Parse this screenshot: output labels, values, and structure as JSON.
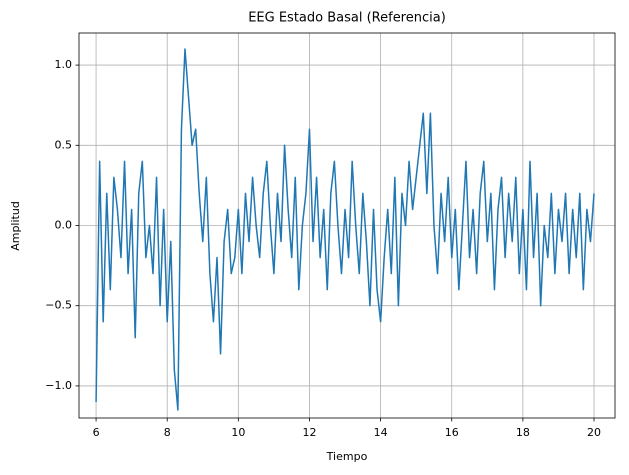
{
  "chart_data": {
    "type": "line",
    "title": "EEG Estado Basal (Referencia)",
    "x_label": "Tiempo",
    "y_label": "Amplitud",
    "xlim": [
      5.52,
      20.59
    ],
    "ylim": [
      -1.2,
      1.2
    ],
    "xticks": [
      6,
      8,
      10,
      12,
      14,
      16,
      18,
      20
    ],
    "yticks": [
      {
        "value": -1,
        "label": "−1.0"
      },
      {
        "value": -0.5,
        "label": "−0.5"
      },
      {
        "value": 0,
        "label": "0.0"
      },
      0.5,
      {
        "value": 1,
        "label": "1.0"
      }
    ],
    "grid": true,
    "x": [
      6,
      6.1,
      6.2,
      6.3,
      6.4,
      6.5,
      6.6,
      6.7,
      6.8,
      6.9,
      7,
      7.1,
      7.2,
      7.3,
      7.4,
      7.5,
      7.6,
      7.7,
      7.8,
      7.9,
      8,
      8.1,
      8.2,
      8.3,
      8.4,
      8.5,
      8.6,
      8.7,
      8.8,
      8.9,
      9,
      9.1,
      9.2,
      9.3,
      9.4,
      9.5,
      9.6,
      9.7,
      9.8,
      9.9,
      10,
      10.1,
      10.2,
      10.3,
      10.4,
      10.5,
      10.6,
      10.7,
      10.8,
      10.9,
      11,
      11.1,
      11.2,
      11.3,
      11.4,
      11.5,
      11.6,
      11.7,
      11.8,
      11.9,
      12,
      12.1,
      12.2,
      12.3,
      12.4,
      12.5,
      12.6,
      12.7,
      12.8,
      12.9,
      13,
      13.1,
      13.2,
      13.3,
      13.4,
      13.5,
      13.6,
      13.7,
      13.8,
      13.9,
      14,
      14.1,
      14.2,
      14.3,
      14.4,
      14.5,
      14.6,
      14.7,
      14.8,
      14.9,
      15,
      15.1,
      15.2,
      15.3,
      15.4,
      15.5,
      15.6,
      15.7,
      15.8,
      15.9,
      16,
      16.1,
      16.2,
      16.3,
      16.4,
      16.5,
      16.6,
      16.7,
      16.8,
      16.9,
      17,
      17.1,
      17.2,
      17.3,
      17.4,
      17.5,
      17.6,
      17.7,
      17.8,
      17.9,
      18,
      18.1,
      18.2,
      18.3,
      18.4,
      18.5,
      18.6,
      18.7,
      18.8,
      18.9,
      19,
      19.1,
      19.2,
      19.3,
      19.4,
      19.5,
      19.6,
      19.7,
      19.8,
      19.9,
      20
    ],
    "series": [
      {
        "color": "#1f77b4",
        "values": [
          -1.1,
          0.4,
          -0.6,
          0.2,
          -0.4,
          0.3,
          0.1,
          -0.2,
          0.4,
          -0.3,
          0.1,
          -0.7,
          0.2,
          0.4,
          -0.2,
          0.0,
          -0.3,
          0.3,
          -0.5,
          0.1,
          -0.6,
          -0.1,
          -0.9,
          -1.15,
          0.6,
          1.1,
          0.8,
          0.5,
          0.6,
          0.2,
          -0.1,
          0.3,
          -0.3,
          -0.6,
          -0.2,
          -0.8,
          -0.1,
          0.1,
          -0.3,
          -0.2,
          0.1,
          -0.3,
          0.2,
          -0.1,
          0.3,
          0.0,
          -0.2,
          0.2,
          0.4,
          0.0,
          -0.3,
          0.2,
          -0.1,
          0.5,
          0.1,
          -0.2,
          0.3,
          -0.4,
          0.0,
          0.2,
          0.6,
          -0.1,
          0.3,
          -0.2,
          0.1,
          -0.4,
          0.2,
          0.4,
          0.0,
          -0.3,
          0.1,
          -0.2,
          0.4,
          0.0,
          -0.3,
          0.2,
          -0.1,
          -0.5,
          0.1,
          -0.4,
          -0.6,
          -0.2,
          0.1,
          -0.3,
          0.3,
          -0.5,
          0.2,
          0.0,
          0.4,
          0.1,
          0.3,
          0.5,
          0.7,
          0.2,
          0.7,
          0.0,
          -0.3,
          0.2,
          -0.1,
          0.3,
          -0.2,
          0.1,
          -0.4,
          0.0,
          0.4,
          -0.2,
          0.1,
          -0.3,
          0.2,
          0.4,
          -0.1,
          0.2,
          -0.4,
          0.1,
          0.3,
          -0.2,
          0.2,
          -0.1,
          0.3,
          -0.3,
          0.1,
          -0.4,
          0.4,
          -0.2,
          0.2,
          -0.5,
          0.0,
          -0.2,
          0.2,
          -0.3,
          0.1,
          -0.1,
          0.2,
          -0.3,
          0.1,
          -0.2,
          0.2,
          -0.4,
          0.1,
          -0.1,
          0.2
        ]
      }
    ]
  }
}
